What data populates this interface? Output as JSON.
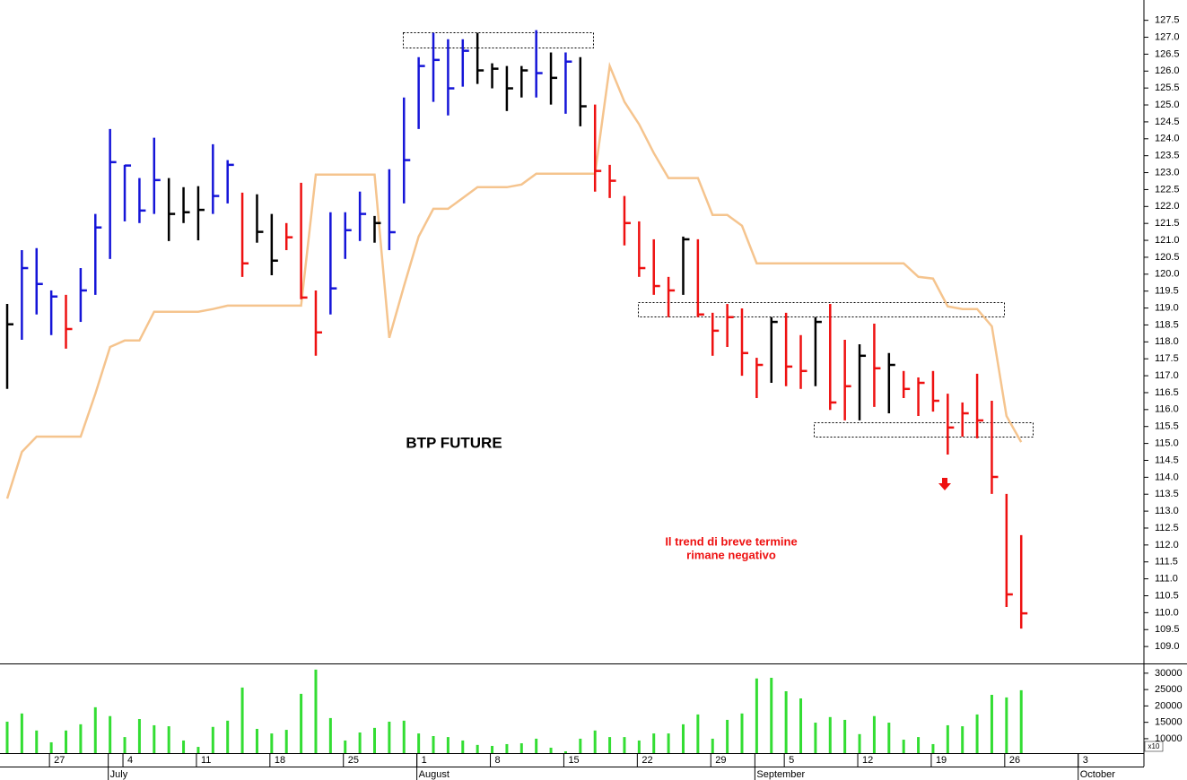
{
  "chart_data": {
    "type": "hlc",
    "title": "BTP  FUTURE",
    "annotation": [
      "Il trend di breve termine",
      "rimane negativo"
    ],
    "categories": [
      null,
      null,
      null,
      "27",
      null,
      null,
      null,
      null,
      "4",
      null,
      null,
      null,
      null,
      "11",
      null,
      null,
      null,
      null,
      "18",
      null,
      null,
      null,
      null,
      "25",
      null,
      null,
      null,
      null,
      "1",
      null,
      null,
      null,
      null,
      "8",
      null,
      null,
      null,
      null,
      "15",
      null,
      null,
      null,
      null,
      "22",
      null,
      null,
      null,
      null,
      "29",
      null,
      null,
      null,
      null,
      "5",
      null,
      null,
      null,
      null,
      "12",
      null,
      null,
      null,
      null,
      "19",
      null,
      null,
      null,
      null,
      "26",
      null,
      null,
      null,
      null,
      "3"
    ],
    "months": [
      null,
      null,
      null,
      null,
      null,
      null,
      null,
      "July",
      null,
      null,
      null,
      null,
      null,
      null,
      null,
      null,
      null,
      null,
      null,
      null,
      null,
      null,
      null,
      null,
      null,
      null,
      null,
      null,
      "August",
      null,
      null,
      null,
      null,
      null,
      null,
      null,
      null,
      null,
      null,
      null,
      null,
      null,
      null,
      null,
      null,
      null,
      null,
      null,
      null,
      null,
      null,
      "September",
      null,
      null,
      null,
      null,
      null,
      null,
      null,
      null,
      null,
      null,
      null,
      null,
      null,
      null,
      null,
      null,
      null,
      null,
      null,
      null,
      null,
      "October"
    ],
    "high": [
      119.12,
      120.71,
      120.77,
      119.52,
      119.39,
      120.18,
      121.78,
      124.29,
      123.23,
      122.84,
      124.03,
      122.84,
      122.57,
      122.6,
      123.84,
      123.37,
      122.41,
      122.36,
      121.78,
      121.51,
      122.7,
      119.52,
      121.83,
      121.83,
      122.44,
      121.72,
      123.1,
      125.22,
      126.41,
      127.13,
      126.94,
      126.94,
      127.13,
      126.23,
      126.15,
      126.15,
      127.21,
      126.55,
      126.55,
      126.41,
      125.01,
      123.23,
      122.31,
      121.56,
      121.03,
      119.92,
      121.11,
      121.03,
      118.86,
      119.12,
      118.99,
      117.53,
      118.73,
      118.86,
      118.2,
      118.73,
      119.12,
      118.06,
      117.93,
      118.54,
      117.67,
      117.14,
      116.95,
      117.14,
      116.47,
      116.21,
      117.06,
      116.26,
      113.51,
      112.29,
      null,
      null,
      null,
      null
    ],
    "low": [
      116.61,
      118.06,
      118.81,
      118.2,
      117.8,
      118.59,
      119.39,
      120.45,
      121.56,
      121.51,
      121.78,
      120.98,
      121.51,
      121.0,
      121.78,
      122.09,
      119.92,
      120.93,
      119.97,
      120.71,
      119.26,
      117.59,
      118.81,
      120.45,
      120.98,
      120.93,
      120.71,
      122.09,
      124.29,
      125.09,
      124.69,
      125.54,
      125.62,
      125.49,
      124.82,
      125.22,
      125.22,
      125.01,
      124.74,
      124.37,
      122.44,
      122.25,
      120.85,
      119.92,
      119.39,
      118.73,
      119.39,
      118.73,
      117.59,
      117.85,
      117.0,
      116.34,
      116.79,
      116.69,
      116.61,
      116.69,
      115.99,
      115.68,
      115.68,
      116.08,
      115.89,
      116.34,
      115.81,
      115.94,
      114.67,
      115.2,
      115.15,
      113.51,
      110.17,
      109.53,
      null,
      null,
      null,
      null
    ],
    "close": [
      118.52,
      120.18,
      119.71,
      119.34,
      118.38,
      119.52,
      121.38,
      123.31,
      123.21,
      121.88,
      122.78,
      121.78,
      121.83,
      121.9,
      122.31,
      123.23,
      120.32,
      121.25,
      120.4,
      121.09,
      119.31,
      118.28,
      119.58,
      121.3,
      121.78,
      121.51,
      121.24,
      123.37,
      126.15,
      126.33,
      125.49,
      126.6,
      126.02,
      126.07,
      125.49,
      126.02,
      125.94,
      125.8,
      126.28,
      124.96,
      123.05,
      122.76,
      121.51,
      120.18,
      119.65,
      119.52,
      121.03,
      118.81,
      118.33,
      118.73,
      117.67,
      117.32,
      118.59,
      117.27,
      117.14,
      118.59,
      116.21,
      116.69,
      117.59,
      117.22,
      117.32,
      116.61,
      116.79,
      116.26,
      115.47,
      115.89,
      115.68,
      114.01,
      110.54,
      109.98,
      null,
      null,
      null,
      null
    ],
    "bar_colors": [
      "#000000",
      "#1515d8",
      "#1515d8",
      "#1515d8",
      "#ee1111",
      "#1515d8",
      "#1515d8",
      "#1515d8",
      "#1515d8",
      "#1515d8",
      "#1515d8",
      "#000000",
      "#000000",
      "#000000",
      "#1515d8",
      "#1515d8",
      "#ee1111",
      "#000000",
      "#000000",
      "#ee1111",
      "#ee1111",
      "#ee1111",
      "#1515d8",
      "#1515d8",
      "#1515d8",
      "#000000",
      "#1515d8",
      "#1515d8",
      "#1515d8",
      "#1515d8",
      "#1515d8",
      "#1515d8",
      "#000000",
      "#000000",
      "#000000",
      "#000000",
      "#1515d8",
      "#000000",
      "#1515d8",
      "#000000",
      "#ee1111",
      "#ee1111",
      "#ee1111",
      "#ee1111",
      "#ee1111",
      "#ee1111",
      "#000000",
      "#ee1111",
      "#ee1111",
      "#ee1111",
      "#ee1111",
      "#ee1111",
      "#000000",
      "#ee1111",
      "#ee1111",
      "#000000",
      "#ee1111",
      "#ee1111",
      "#000000",
      "#ee1111",
      "#000000",
      "#ee1111",
      "#ee1111",
      "#ee1111",
      "#ee1111",
      "#ee1111",
      "#ee1111",
      "#ee1111",
      "#ee1111",
      "#ee1111",
      null,
      null,
      null,
      null
    ],
    "line": {
      "color": "#f5c48e",
      "values": [
        113.37,
        114.75,
        115.2,
        115.2,
        115.2,
        115.2,
        116.47,
        117.85,
        118.04,
        118.04,
        118.89,
        118.89,
        118.89,
        118.89,
        118.97,
        119.07,
        119.07,
        119.07,
        119.07,
        119.07,
        119.07,
        122.94,
        122.94,
        122.94,
        122.94,
        122.94,
        118.12,
        119.65,
        121.11,
        121.93,
        121.93,
        122.25,
        122.57,
        122.57,
        122.57,
        122.65,
        122.97,
        122.97,
        122.97,
        122.97,
        122.97,
        126.15,
        125.09,
        124.43,
        123.58,
        122.84,
        122.84,
        122.84,
        121.75,
        121.75,
        121.43,
        120.32,
        120.32,
        120.32,
        120.32,
        120.32,
        120.32,
        120.32,
        120.32,
        120.32,
        120.32,
        120.32,
        119.92,
        119.87,
        119.05,
        118.97,
        118.97,
        118.46,
        115.81,
        115.04,
        null,
        null,
        null,
        null
      ]
    },
    "ylim": [
      108.5,
      128.1
    ],
    "yticks": [
      {
        "value": 109,
        "label": "109.0"
      },
      109.5,
      {
        "value": 110,
        "label": "110.0"
      },
      110.5,
      {
        "value": 111,
        "label": "111.0"
      },
      111.5,
      {
        "value": 112,
        "label": "112.0"
      },
      112.5,
      {
        "value": 113,
        "label": "113.0"
      },
      113.5,
      {
        "value": 114,
        "label": "114.0"
      },
      114.5,
      {
        "value": 115,
        "label": "115.0"
      },
      115.5,
      {
        "value": 116,
        "label": "116.0"
      },
      116.5,
      {
        "value": 117,
        "label": "117.0"
      },
      117.5,
      {
        "value": 118,
        "label": "118.0"
      },
      118.5,
      {
        "value": 119,
        "label": "119.0"
      },
      119.5,
      {
        "value": 120,
        "label": "120.0"
      },
      120.5,
      {
        "value": 121,
        "label": "121.0"
      },
      121.5,
      {
        "value": 122,
        "label": "122.0"
      },
      122.5,
      {
        "value": 123,
        "label": "123.0"
      },
      123.5,
      {
        "value": 124,
        "label": "124.0"
      },
      124.5,
      {
        "value": 125,
        "label": "125.0"
      },
      125.5,
      {
        "value": 126,
        "label": "126.0"
      },
      126.5,
      {
        "value": 127,
        "label": "127.0"
      },
      127.5
    ],
    "volume": {
      "color": "#33dd33",
      "unit_label": "x10",
      "values": [
        15200,
        17700,
        12500,
        8900,
        12500,
        14400,
        19600,
        16900,
        10500,
        16000,
        14100,
        13800,
        9450,
        7500,
        13600,
        15500,
        25600,
        13000,
        11600,
        12700,
        23700,
        31100,
        16300,
        9450,
        11900,
        13300,
        15200,
        15500,
        11600,
        10800,
        10500,
        9450,
        8100,
        7800,
        8350,
        8600,
        10000,
        7250,
        6150,
        10000,
        12500,
        10500,
        10500,
        9450,
        11600,
        11600,
        14400,
        17400,
        10000,
        15750,
        17700,
        28400,
        28600,
        24500,
        22300,
        14900,
        16600,
        15750,
        11400,
        16900,
        14900,
        9700,
        10500,
        8350,
        14100,
        13800,
        17400,
        23400,
        22600,
        24800,
        null,
        null,
        null,
        null
      ],
      "ylim": [
        5600,
        32700
      ],
      "yticks": [
        10000,
        15000,
        20000,
        25000,
        30000
      ]
    }
  }
}
